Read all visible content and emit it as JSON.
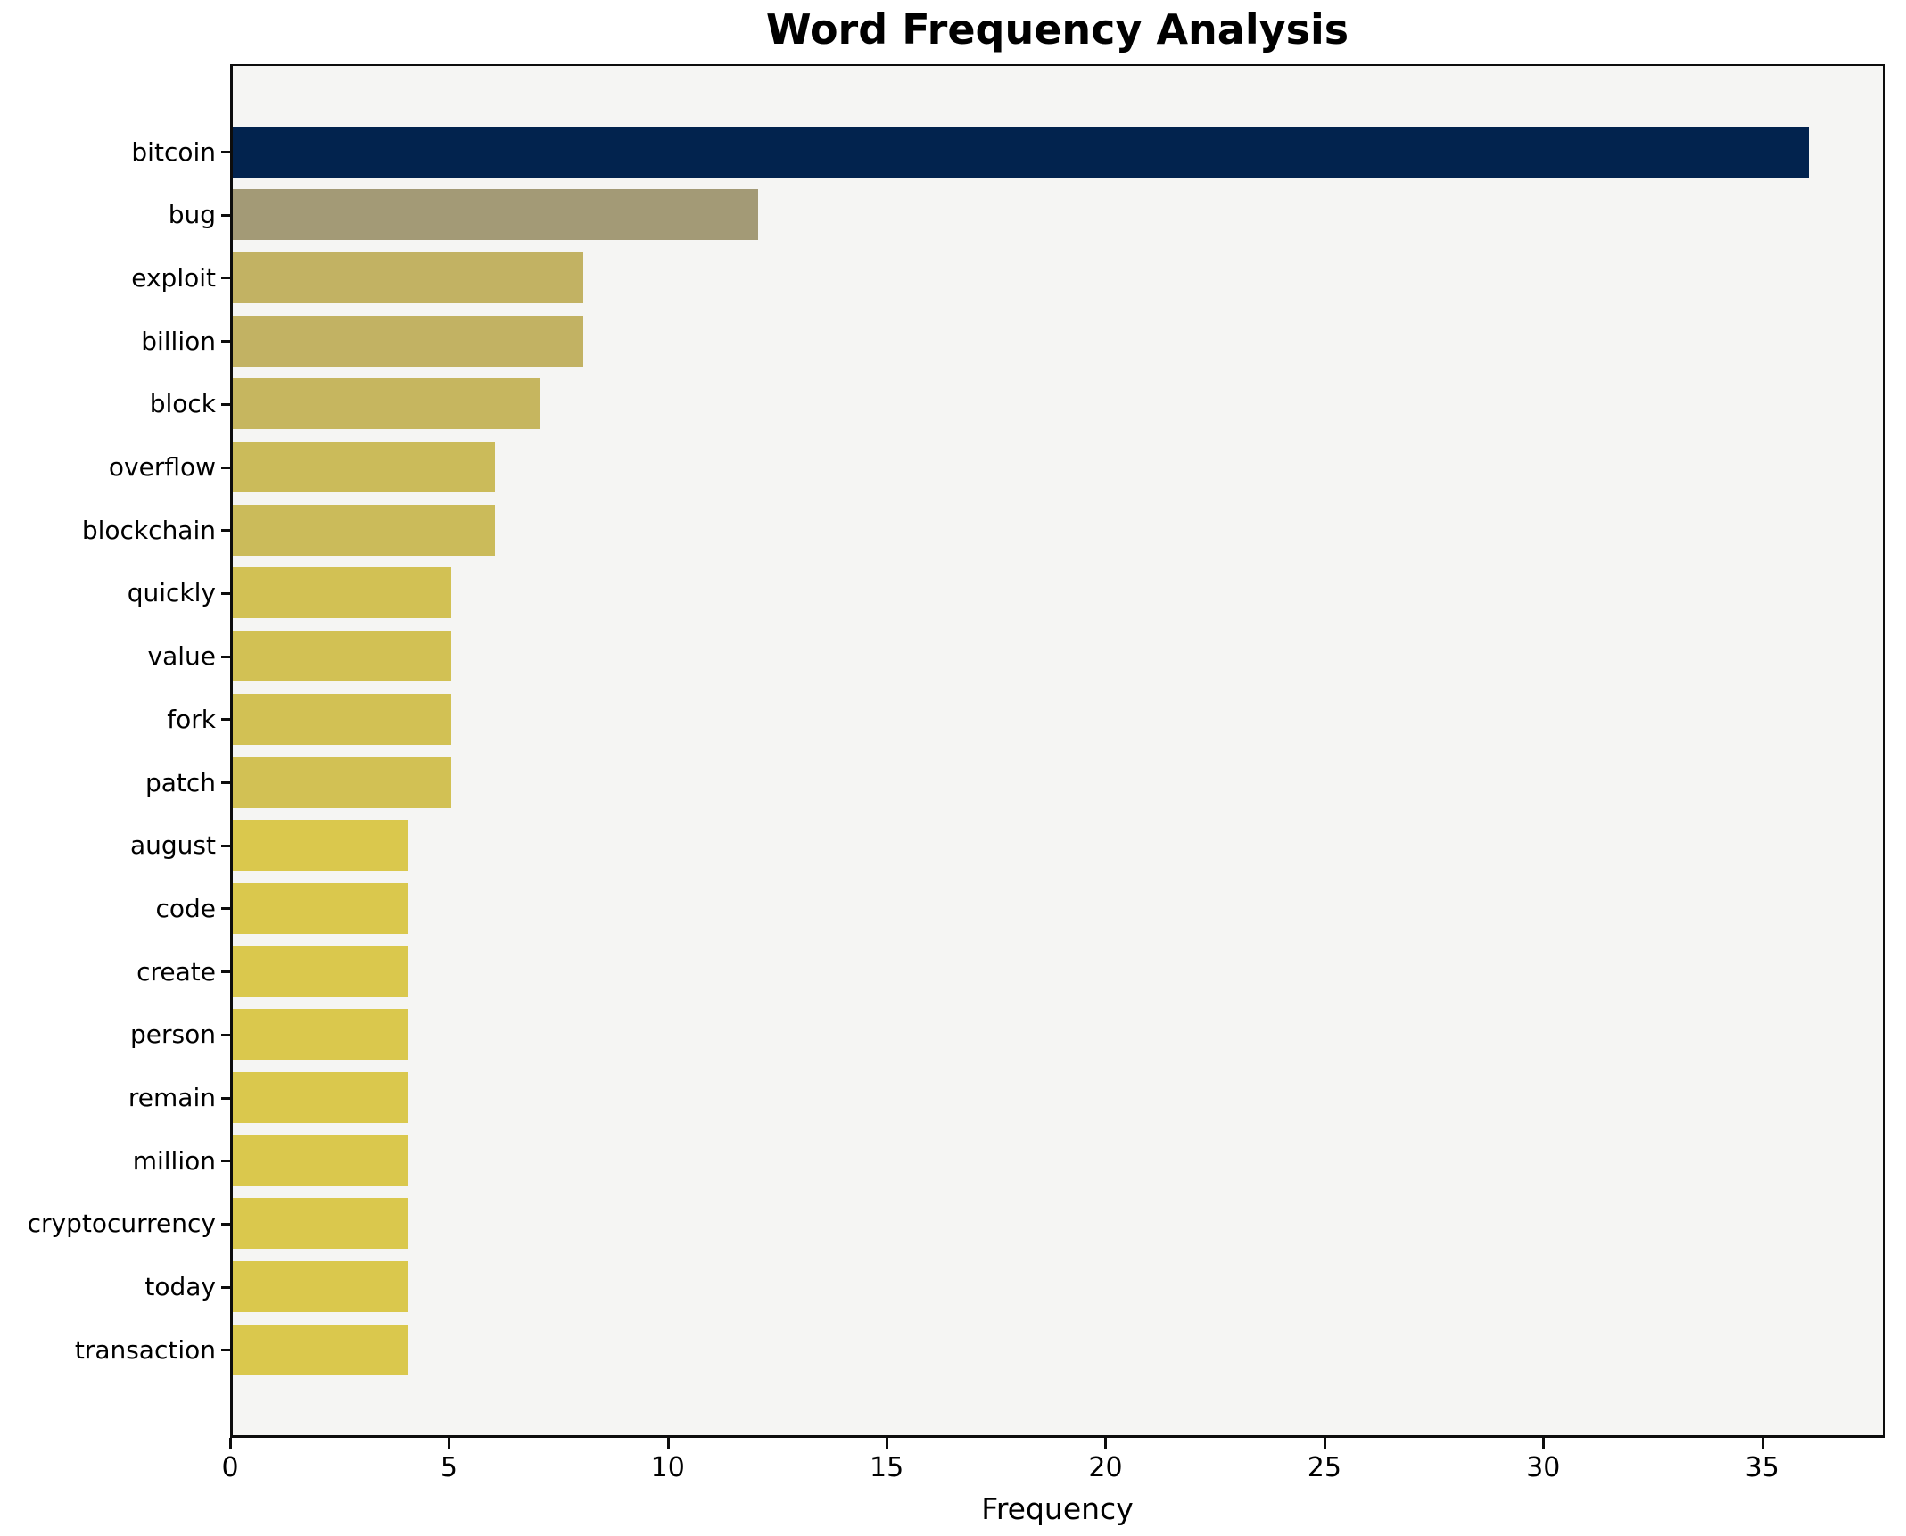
{
  "title": "Word Frequency Analysis",
  "chart_data": {
    "type": "bar",
    "orientation": "horizontal",
    "title": "Word Frequency Analysis",
    "xlabel": "Frequency",
    "ylabel": "",
    "xlim": [
      0,
      37.8
    ],
    "x_ticks": [
      0,
      5,
      10,
      15,
      20,
      25,
      30,
      35
    ],
    "grid": false,
    "legend": "none",
    "categories": [
      "bitcoin",
      "bug",
      "exploit",
      "billion",
      "block",
      "overflow",
      "blockchain",
      "quickly",
      "value",
      "fork",
      "patch",
      "august",
      "code",
      "create",
      "person",
      "remain",
      "million",
      "cryptocurrency",
      "today",
      "transaction"
    ],
    "values": [
      36,
      12,
      8,
      8,
      7,
      6,
      6,
      5,
      5,
      5,
      5,
      4,
      4,
      4,
      4,
      4,
      4,
      4,
      4,
      4
    ],
    "bar_colors": [
      "#02234e",
      "#a39a76",
      "#c2b263",
      "#c2b263",
      "#c6b65f",
      "#cbbb5a",
      "#cbbb5a",
      "#d2c154",
      "#d2c154",
      "#d2c154",
      "#d2c154",
      "#dac84d",
      "#dac84d",
      "#dac84d",
      "#dac84d",
      "#dac84d",
      "#dac84d",
      "#dac84d",
      "#dac84d",
      "#dac84d"
    ],
    "colors": {
      "figure_bg": "#ffffff",
      "plot_bg": "#f5f5f3",
      "spine": "#0d0d0d",
      "text": "#000000"
    }
  }
}
